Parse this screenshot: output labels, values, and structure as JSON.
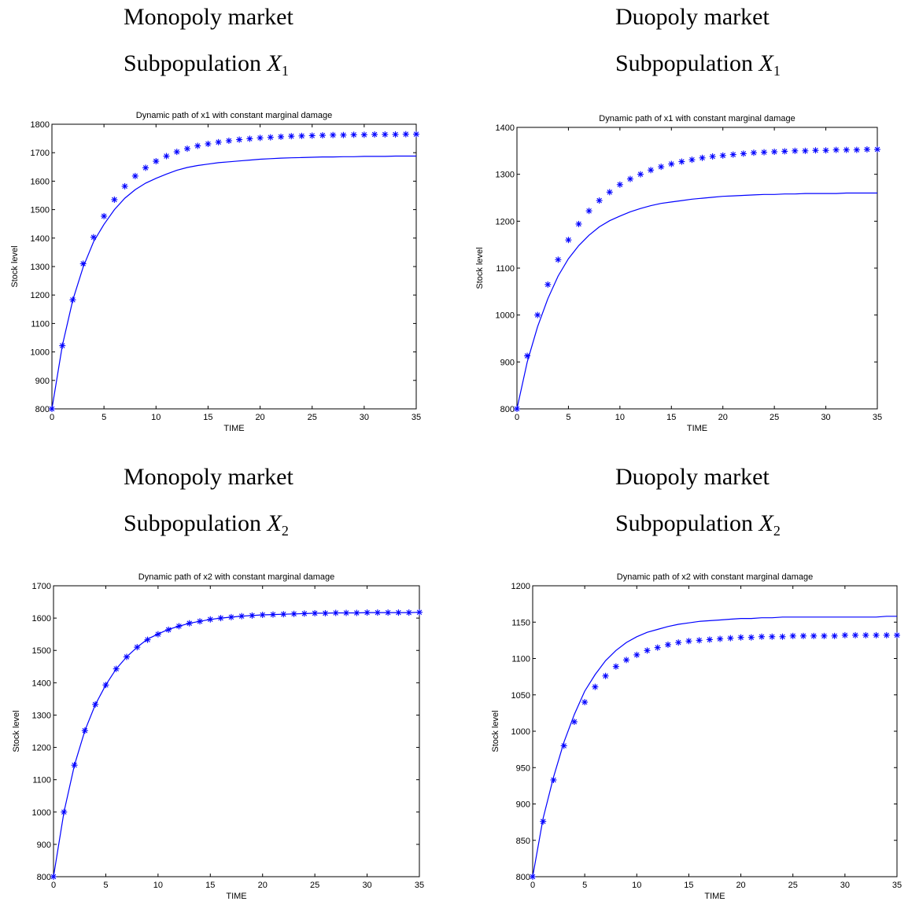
{
  "panels": [
    {
      "heading_market": "Monopoly market",
      "heading_sub_text": "Subpopulation",
      "heading_var": "X",
      "heading_index": "1",
      "chart_data": {
        "type": "line",
        "title": "Dynamic path of x1 with constant marginal damage",
        "xlabel": "TIME",
        "ylabel": "Stock level",
        "xlim": [
          0,
          35
        ],
        "ylim": [
          800,
          1800
        ],
        "xticks": [
          0,
          5,
          10,
          15,
          20,
          25,
          30,
          35
        ],
        "yticks": [
          800,
          900,
          1000,
          1100,
          1200,
          1300,
          1400,
          1500,
          1600,
          1700,
          1800
        ],
        "grid": false,
        "series": [
          {
            "style": "line",
            "x": [
              0,
              1,
              2,
              3,
              4,
              5,
              6,
              7,
              8,
              9,
              10,
              11,
              12,
              13,
              14,
              15,
              16,
              17,
              18,
              19,
              20,
              21,
              22,
              23,
              24,
              25,
              26,
              27,
              28,
              29,
              30,
              31,
              32,
              33,
              34,
              35
            ],
            "values": [
              800,
              1022,
              1182,
              1298,
              1387,
              1448,
              1500,
              1540,
              1570,
              1593,
              1610,
              1625,
              1638,
              1648,
              1655,
              1660,
              1665,
              1668,
              1671,
              1674,
              1677,
              1679,
              1681,
              1682,
              1683,
              1684,
              1685,
              1685,
              1686,
              1686,
              1687,
              1687,
              1687,
              1688,
              1688,
              1688
            ]
          },
          {
            "style": "markers",
            "x": [
              0,
              1,
              2,
              3,
              4,
              5,
              6,
              7,
              8,
              9,
              10,
              11,
              12,
              13,
              14,
              15,
              16,
              17,
              18,
              19,
              20,
              21,
              22,
              23,
              24,
              25,
              26,
              27,
              28,
              29,
              30,
              31,
              32,
              33,
              34,
              35
            ],
            "values": [
              800,
              1022,
              1183,
              1310,
              1403,
              1477,
              1535,
              1582,
              1618,
              1647,
              1670,
              1688,
              1703,
              1714,
              1724,
              1731,
              1737,
              1742,
              1746,
              1749,
              1752,
              1754,
              1756,
              1758,
              1759,
              1760,
              1761,
              1762,
              1762,
              1763,
              1763,
              1764,
              1764,
              1764,
              1765,
              1765
            ]
          }
        ]
      }
    },
    {
      "heading_market": "Duopoly market",
      "heading_sub_text": "Subpopulation",
      "heading_var": "X",
      "heading_index": "1",
      "chart_data": {
        "type": "line",
        "title": "Dynamic path of x1 with constant marginal damage",
        "xlabel": "TIME",
        "ylabel": "Stock level",
        "xlim": [
          0,
          35
        ],
        "ylim": [
          800,
          1400
        ],
        "xticks": [
          0,
          5,
          10,
          15,
          20,
          25,
          30,
          35
        ],
        "yticks": [
          800,
          900,
          1000,
          1100,
          1200,
          1300,
          1400
        ],
        "grid": false,
        "series": [
          {
            "style": "line",
            "x": [
              0,
              1,
              2,
              3,
              4,
              5,
              6,
              7,
              8,
              9,
              10,
              11,
              12,
              13,
              14,
              15,
              16,
              17,
              18,
              19,
              20,
              21,
              22,
              23,
              24,
              25,
              26,
              27,
              28,
              29,
              30,
              31,
              32,
              33,
              34,
              35
            ],
            "values": [
              800,
              900,
              975,
              1035,
              1083,
              1120,
              1148,
              1170,
              1188,
              1201,
              1211,
              1220,
              1227,
              1233,
              1238,
              1241,
              1244,
              1247,
              1249,
              1251,
              1253,
              1254,
              1255,
              1256,
              1257,
              1257,
              1258,
              1258,
              1259,
              1259,
              1259,
              1259,
              1260,
              1260,
              1260,
              1260
            ]
          },
          {
            "style": "markers",
            "x": [
              0,
              1,
              2,
              3,
              4,
              5,
              6,
              7,
              8,
              9,
              10,
              11,
              12,
              13,
              14,
              15,
              16,
              17,
              18,
              19,
              20,
              21,
              22,
              23,
              24,
              25,
              26,
              27,
              28,
              29,
              30,
              31,
              32,
              33,
              34,
              35
            ],
            "values": [
              800,
              913,
              1000,
              1065,
              1118,
              1160,
              1194,
              1222,
              1244,
              1262,
              1278,
              1290,
              1300,
              1309,
              1316,
              1322,
              1327,
              1331,
              1335,
              1338,
              1340,
              1342,
              1344,
              1346,
              1347,
              1348,
              1349,
              1350,
              1350,
              1351,
              1351,
              1352,
              1352,
              1352,
              1353,
              1353
            ]
          }
        ]
      }
    },
    {
      "heading_market": "Monopoly market",
      "heading_sub_text": "Subpopulation",
      "heading_var": "X",
      "heading_index": "2",
      "chart_data": {
        "type": "line",
        "title": "Dynamic path of x2 with constant marginal damage",
        "xlabel": "TIME",
        "ylabel": "Stock level",
        "xlim": [
          0,
          35
        ],
        "ylim": [
          800,
          1700
        ],
        "xticks": [
          0,
          5,
          10,
          15,
          20,
          25,
          30,
          35
        ],
        "yticks": [
          800,
          900,
          1000,
          1100,
          1200,
          1300,
          1400,
          1500,
          1600,
          1700
        ],
        "grid": false,
        "series": [
          {
            "style": "line",
            "x": [
              0,
              1,
              2,
              3,
              4,
              5,
              6,
              7,
              8,
              9,
              10,
              11,
              12,
              13,
              14,
              15,
              16,
              17,
              18,
              19,
              20,
              21,
              22,
              23,
              24,
              25,
              26,
              27,
              28,
              29,
              30,
              31,
              32,
              33,
              34,
              35
            ],
            "values": [
              800,
              1000,
              1145,
              1252,
              1332,
              1393,
              1443,
              1480,
              1510,
              1535,
              1551,
              1565,
              1575,
              1584,
              1590,
              1596,
              1600,
              1603,
              1606,
              1608,
              1610,
              1611,
              1612,
              1613,
              1614,
              1615,
              1615,
              1616,
              1616,
              1616,
              1617,
              1617,
              1617,
              1617,
              1617,
              1618
            ]
          },
          {
            "style": "markers",
            "x": [
              0,
              1,
              2,
              3,
              4,
              5,
              6,
              7,
              8,
              9,
              10,
              11,
              12,
              13,
              14,
              15,
              16,
              17,
              18,
              19,
              20,
              21,
              22,
              23,
              24,
              25,
              26,
              27,
              28,
              29,
              30,
              31,
              32,
              33,
              34,
              35
            ],
            "values": [
              800,
              1000,
              1145,
              1252,
              1333,
              1393,
              1443,
              1480,
              1510,
              1533,
              1550,
              1564,
              1575,
              1584,
              1590,
              1596,
              1600,
              1603,
              1606,
              1608,
              1610,
              1611,
              1612,
              1613,
              1614,
              1615,
              1615,
              1616,
              1616,
              1616,
              1617,
              1617,
              1617,
              1617,
              1617,
              1618
            ]
          }
        ]
      }
    },
    {
      "heading_market": "Duopoly market",
      "heading_sub_text": "Subpopulation",
      "heading_var": "X",
      "heading_index": "2",
      "chart_data": {
        "type": "line",
        "title": "Dynamic path of x2 with constant marginal damage",
        "xlabel": "TIME",
        "ylabel": "Stock level",
        "xlim": [
          0,
          35
        ],
        "ylim": [
          800,
          1200
        ],
        "xticks": [
          0,
          5,
          10,
          15,
          20,
          25,
          30,
          35
        ],
        "yticks": [
          800,
          850,
          900,
          950,
          1000,
          1050,
          1100,
          1150,
          1200
        ],
        "grid": false,
        "series": [
          {
            "style": "line",
            "x": [
              0,
              1,
              2,
              3,
              4,
              5,
              6,
              7,
              8,
              9,
              10,
              11,
              12,
              13,
              14,
              15,
              16,
              17,
              18,
              19,
              20,
              21,
              22,
              23,
              24,
              25,
              26,
              27,
              28,
              29,
              30,
              31,
              32,
              33,
              34,
              35
            ],
            "values": [
              800,
              880,
              937,
              985,
              1023,
              1055,
              1078,
              1097,
              1111,
              1122,
              1130,
              1136,
              1140,
              1144,
              1147,
              1149,
              1151,
              1152,
              1153,
              1154,
              1155,
              1155,
              1156,
              1156,
              1157,
              1157,
              1157,
              1157,
              1157,
              1157,
              1157,
              1157,
              1157,
              1157,
              1158,
              1158
            ]
          },
          {
            "style": "markers",
            "x": [
              0,
              1,
              2,
              3,
              4,
              5,
              6,
              7,
              8,
              9,
              10,
              11,
              12,
              13,
              14,
              15,
              16,
              17,
              18,
              19,
              20,
              21,
              22,
              23,
              24,
              25,
              26,
              27,
              28,
              29,
              30,
              31,
              32,
              33,
              34,
              35
            ],
            "values": [
              800,
              876,
              933,
              980,
              1013,
              1040,
              1061,
              1076,
              1089,
              1098,
              1105,
              1111,
              1115,
              1119,
              1122,
              1124,
              1125,
              1126,
              1127,
              1128,
              1129,
              1129,
              1130,
              1130,
              1130,
              1131,
              1131,
              1131,
              1131,
              1131,
              1132,
              1132,
              1132,
              1132,
              1132,
              1132
            ]
          }
        ]
      }
    }
  ]
}
